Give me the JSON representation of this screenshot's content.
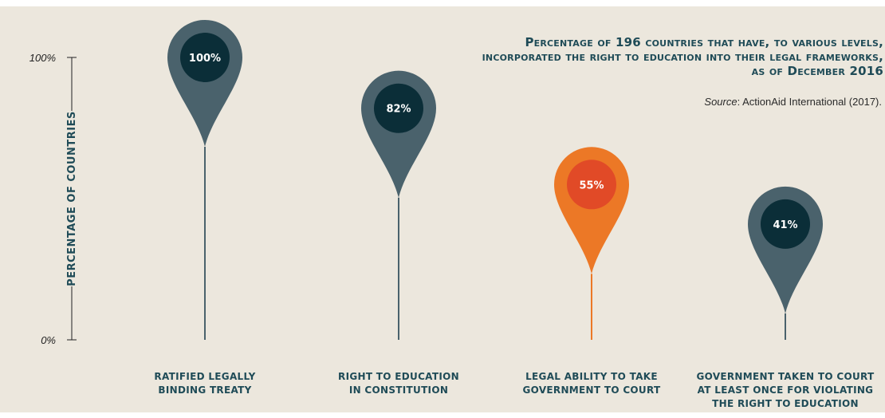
{
  "title": "Percentage of 196 countries that have, to various levels, incorporated the right to education into their legal frameworks, as of December 2016",
  "source": {
    "label": "Source",
    "text": ": ActionAid International (2017)."
  },
  "colors": {
    "background": "#ece7dd",
    "pin": "#4a626c",
    "pin_center": "#0b2e38",
    "highlight_pin": "#ec7826",
    "highlight_center": "#e14a27",
    "text_dark": "#1f4b57"
  },
  "chart_data": {
    "type": "bar",
    "style": "map-pin lollipop",
    "ylabel": "Percentage of countries",
    "ylim": [
      0,
      100
    ],
    "yticks": [
      "0%",
      "100%"
    ],
    "categories": [
      [
        "Ratified legally",
        "binding treaty"
      ],
      [
        "Right to education",
        "in constitution"
      ],
      [
        "Legal ability to take",
        "government to court"
      ],
      [
        "Government taken to court",
        "at least once for violating",
        "the right to education"
      ]
    ],
    "values": [
      100,
      82,
      55,
      41
    ],
    "value_labels": [
      "100%",
      "82%",
      "55%",
      "41%"
    ],
    "highlight_index": 2
  }
}
